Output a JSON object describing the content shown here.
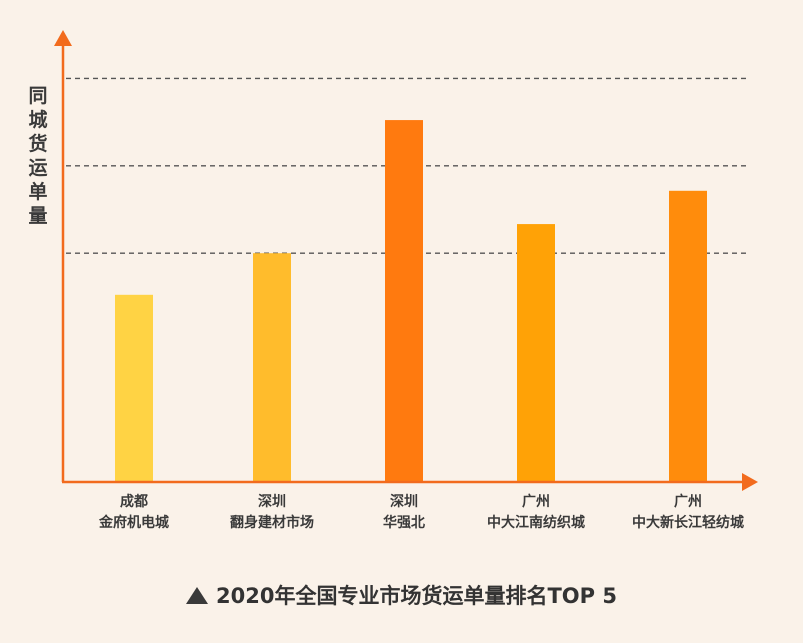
{
  "chart_data": {
    "type": "bar",
    "title": "2020年全国专业市场货运单量排名TOP 5",
    "ylabel": "同城货运单量",
    "xlabel": "",
    "categories": [
      [
        "成都",
        "金府机电城"
      ],
      [
        "深圳",
        "翻身建材市场"
      ],
      [
        "深圳",
        "华强北"
      ],
      [
        "广州",
        "中大江南纺织城"
      ],
      [
        "广州",
        "中大新长江轻纺城"
      ]
    ],
    "values": [
      45,
      55,
      87,
      62,
      70
    ],
    "ylim": [
      0,
      100
    ],
    "gridlines": [
      55,
      76,
      97
    ],
    "grid": true,
    "legend": "none",
    "colors": [
      "#ffd344",
      "#ffbc2c",
      "#ff7a0f",
      "#ffa206",
      "#ff8c0c"
    ],
    "axis_color": "#f26b1d"
  }
}
